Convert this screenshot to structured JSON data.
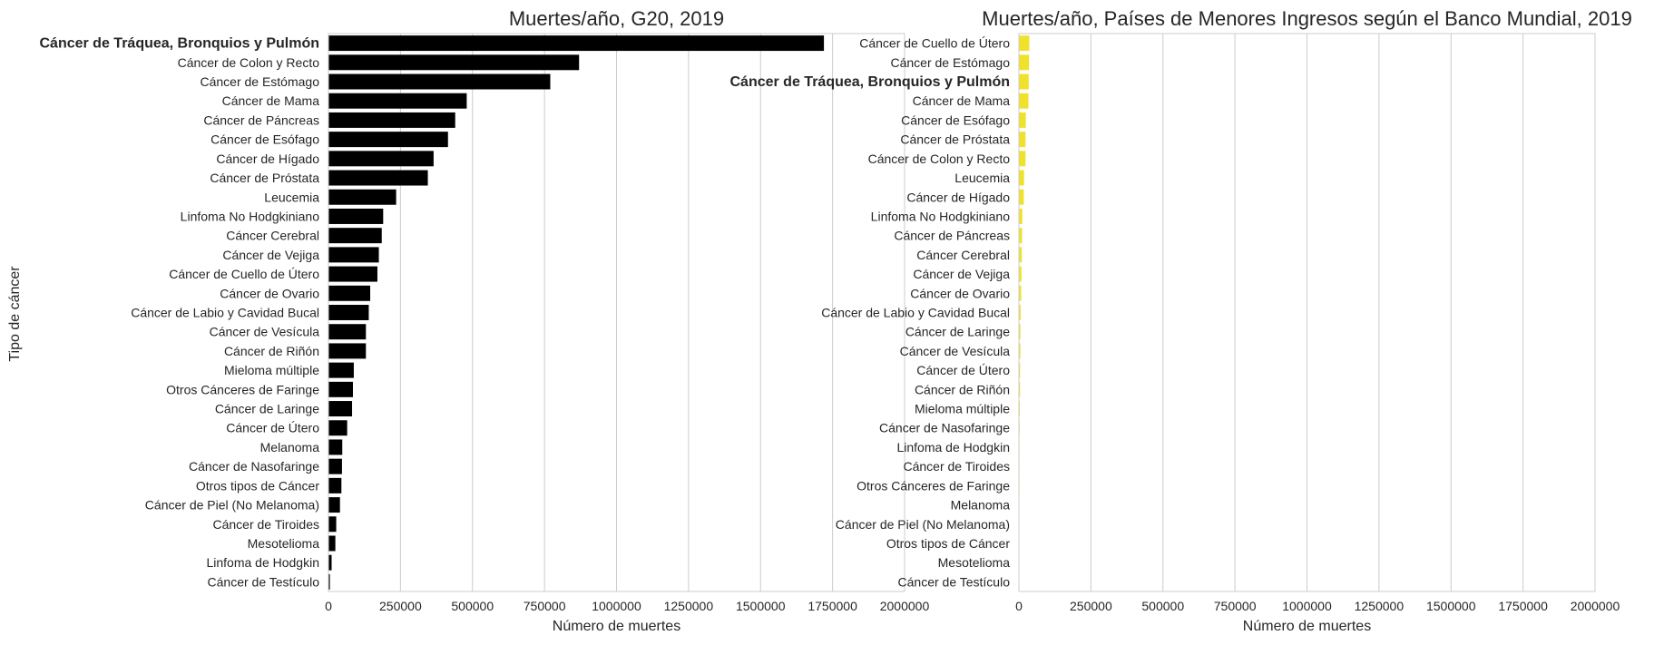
{
  "shared": {
    "ylabel": "Tipo de cáncer",
    "highlight_category": "Cáncer de Tráquea, Bronquios y Pulmón"
  },
  "chart_data": [
    {
      "type": "bar",
      "orientation": "horizontal",
      "title": "Muertes/año, G20, 2019",
      "xlabel": "Número de muertes",
      "ylabel": "Tipo de cáncer",
      "xlim": [
        0,
        2000000
      ],
      "xticks": [
        0,
        250000,
        500000,
        750000,
        1000000,
        1250000,
        1500000,
        1750000,
        2000000
      ],
      "grid": "vertical",
      "bar_color": "#000000",
      "categories": [
        "Cáncer de Tráquea, Bronquios y Pulmón",
        "Cáncer de Colon y Recto",
        "Cáncer de Estómago",
        "Cáncer de Mama",
        "Cáncer de Páncreas",
        "Cáncer de Esófago",
        "Cáncer de Hígado",
        "Cáncer de Próstata",
        "Leucemia",
        "Linfoma No Hodgkiniano",
        "Cáncer Cerebral",
        "Cáncer de Vejiga",
        "Cáncer de Cuello de Útero",
        "Cáncer de Ovario",
        "Cáncer de Labio y Cavidad Bucal",
        "Cáncer de Vesícula",
        "Cáncer de Riñón",
        "Mieloma múltiple",
        "Otros Cánceres de Faringe",
        "Cáncer de Laringe",
        "Cáncer de Útero",
        "Melanoma",
        "Cáncer de Nasofaringe",
        "Otros tipos de Cáncer",
        "Cáncer de Piel (No Melanoma)",
        "Cáncer de Tiroides",
        "Mesotelioma",
        "Linfoma de Hodgkin",
        "Cáncer de Testículo"
      ],
      "values": [
        1720000,
        870000,
        770000,
        480000,
        440000,
        415000,
        365000,
        345000,
        235000,
        190000,
        185000,
        175000,
        170000,
        145000,
        140000,
        130000,
        130000,
        88000,
        85000,
        82000,
        65000,
        48000,
        47000,
        45000,
        40000,
        27000,
        24000,
        11000,
        5000
      ]
    },
    {
      "type": "bar",
      "orientation": "horizontal",
      "title": "Muertes/año, Países de Menores Ingresos según el Banco Mundial, 2019",
      "xlabel": "Número de muertes",
      "xlim": [
        0,
        2000000
      ],
      "xticks": [
        0,
        250000,
        500000,
        750000,
        1000000,
        1250000,
        1500000,
        1750000,
        2000000
      ],
      "grid": "vertical",
      "bar_color": "#f0e22a",
      "categories": [
        "Cáncer de Cuello de Útero",
        "Cáncer de Estómago",
        "Cáncer de Tráquea, Bronquios y Pulmón",
        "Cáncer de Mama",
        "Cáncer de Esófago",
        "Cáncer de Próstata",
        "Cáncer de Colon y Recto",
        "Leucemia",
        "Cáncer de Hígado",
        "Linfoma No Hodgkiniano",
        "Cáncer de Páncreas",
        "Cáncer Cerebral",
        "Cáncer de Vejiga",
        "Cáncer de Ovario",
        "Cáncer de Labio y Cavidad Bucal",
        "Cáncer de Laringe",
        "Cáncer de Vesícula",
        "Cáncer de Útero",
        "Cáncer de Riñón",
        "Mieloma múltiple",
        "Cáncer de Nasofaringe",
        "Linfoma de Hodgkin",
        "Cáncer de Tiroides",
        "Otros Cánceres de Faringe",
        "Melanoma",
        "Cáncer de Piel (No Melanoma)",
        "Otros tipos de Cáncer",
        "Mesotelioma",
        "Cáncer de Testículo"
      ],
      "values": [
        36000,
        35000,
        34000,
        33000,
        24000,
        23000,
        23000,
        18000,
        17000,
        12000,
        11000,
        10000,
        9000,
        8000,
        6000,
        5000,
        5000,
        4000,
        4000,
        3000,
        2500,
        2000,
        2000,
        2000,
        1500,
        1500,
        1200,
        800,
        500
      ]
    }
  ]
}
